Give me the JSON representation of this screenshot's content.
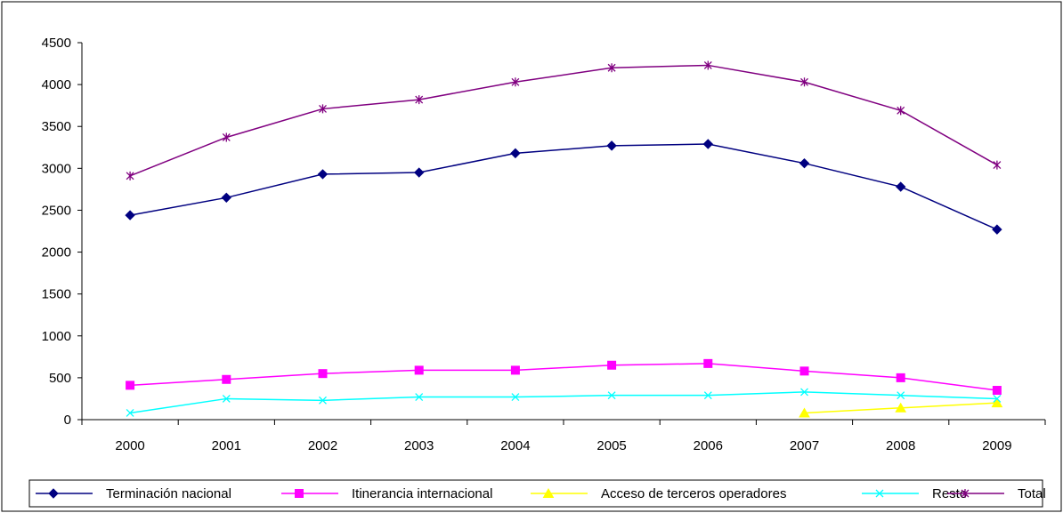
{
  "chart_data": {
    "type": "line",
    "title": "",
    "xlabel": "",
    "ylabel": "",
    "categories": [
      "2000",
      "2001",
      "2002",
      "2003",
      "2004",
      "2005",
      "2006",
      "2007",
      "2008",
      "2009"
    ],
    "ylim": [
      0,
      4500
    ],
    "yticks": [
      "0",
      "500",
      "1000",
      "1500",
      "2000",
      "2500",
      "3000",
      "3500",
      "4000",
      "4500"
    ],
    "grid": false,
    "legend_position": "bottom",
    "series": [
      {
        "name": "Terminación nacional",
        "color": "#000080",
        "marker": "diamond",
        "values": [
          2440,
          2650,
          2930,
          2950,
          3180,
          3270,
          3290,
          3060,
          2780,
          2270
        ]
      },
      {
        "name": "Itinerancia internacional",
        "color": "#FF00FF",
        "marker": "square",
        "values": [
          410,
          480,
          550,
          590,
          590,
          650,
          670,
          580,
          500,
          350
        ]
      },
      {
        "name": "Acceso de terceros operadores",
        "color": "#FFFF00",
        "marker": "triangle",
        "values": [
          null,
          null,
          null,
          null,
          null,
          null,
          null,
          80,
          140,
          200
        ]
      },
      {
        "name": "Resto",
        "color": "#00FFFF",
        "marker": "x",
        "values": [
          80,
          250,
          230,
          270,
          270,
          290,
          290,
          330,
          290,
          250
        ]
      },
      {
        "name": "Total",
        "color": "#800080",
        "marker": "star",
        "values": [
          2910,
          3370,
          3710,
          3820,
          4030,
          4200,
          4230,
          4030,
          3690,
          3040
        ]
      }
    ]
  }
}
